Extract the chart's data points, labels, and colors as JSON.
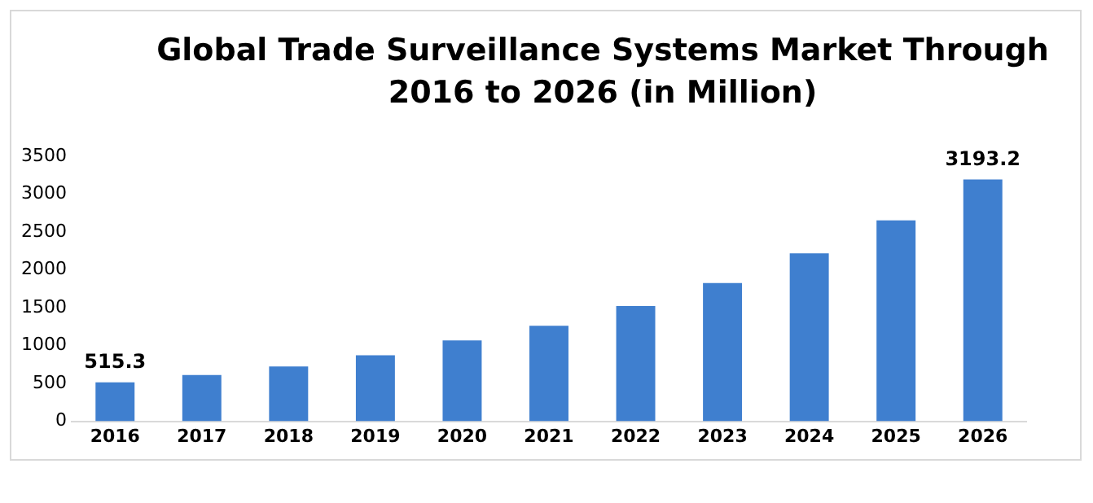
{
  "chart_data": {
    "type": "bar",
    "title": "Global Trade Surveillance Systems Market Through 2016 to 2026 (in Million)",
    "categories": [
      "2016",
      "2017",
      "2018",
      "2019",
      "2020",
      "2021",
      "2022",
      "2023",
      "2024",
      "2025",
      "2026"
    ],
    "values": [
      515.3,
      612,
      724,
      872,
      1067,
      1262,
      1521,
      1827,
      2217,
      2653,
      3193.2
    ],
    "value_labels": [
      "515.3",
      null,
      null,
      null,
      null,
      null,
      null,
      null,
      null,
      null,
      "3193.2"
    ],
    "color": "#3f7fcf",
    "ylim": [
      0,
      3500
    ],
    "yticks": [
      0,
      500,
      1000,
      1500,
      2000,
      2500,
      3000,
      3500
    ],
    "grid": false,
    "legend": false
  }
}
